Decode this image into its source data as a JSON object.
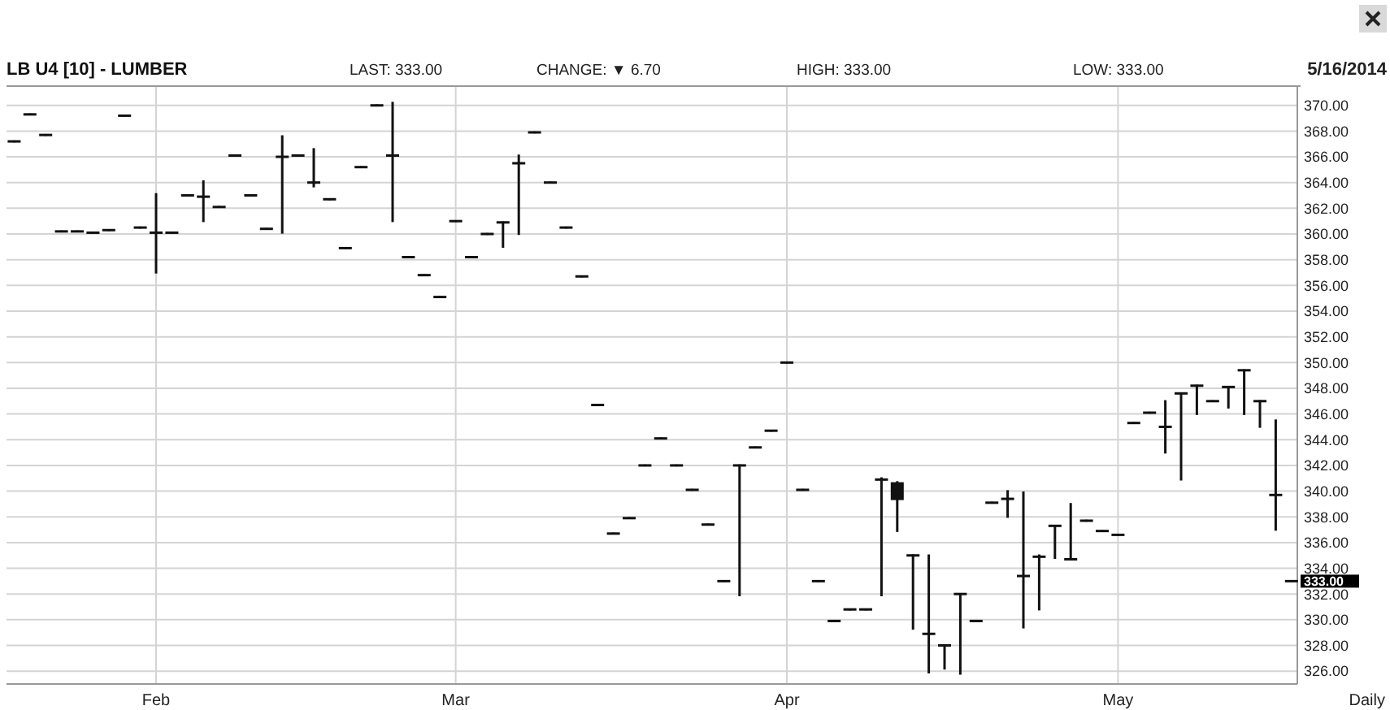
{
  "chart_data": {
    "type": "candlestick",
    "title": "LB U4 [10] - LUMBER",
    "color": "#111111",
    "annotations": [
      "LAST: 333.00",
      "CHANGE: ▼ 6.70",
      "HIGH: 333.00",
      "LOW: 333.00",
      "5/16/2014",
      "Daily",
      "333.00"
    ],
    "categories": [
      null,
      null,
      null,
      null,
      null,
      null,
      null,
      null,
      null,
      "Feb",
      null,
      null,
      null,
      null,
      null,
      null,
      null,
      null,
      null,
      null,
      null,
      null,
      null,
      null,
      null,
      null,
      null,
      null,
      "Mar",
      null,
      null,
      null,
      null,
      null,
      null,
      null,
      null,
      null,
      null,
      null,
      null,
      null,
      null,
      null,
      null,
      null,
      null,
      null,
      null,
      "Apr",
      null,
      null,
      null,
      null,
      null,
      null,
      null,
      null,
      null,
      null,
      null,
      null,
      null,
      null,
      null,
      null,
      null,
      null,
      null,
      null,
      "May",
      null,
      null,
      null,
      null,
      null,
      null,
      null,
      null,
      null,
      null,
      null
    ],
    "ohlc": [
      [
        367.2,
        367.2,
        367.2,
        367.2
      ],
      [
        369.3,
        369.3,
        369.3,
        369.3
      ],
      [
        367.7,
        367.7,
        367.7,
        367.7
      ],
      [
        360.2,
        360.2,
        360.2,
        360.2
      ],
      [
        360.2,
        360.2,
        360.2,
        360.2
      ],
      [
        360.1,
        360.1,
        360.1,
        360.1
      ],
      [
        360.3,
        360.3,
        360.3,
        360.3
      ],
      [
        369.2,
        369.2,
        369.2,
        369.2
      ],
      [
        360.5,
        360.5,
        360.5,
        360.5
      ],
      [
        360.1,
        363.1,
        357.0,
        360.1
      ],
      [
        360.1,
        360.1,
        360.1,
        360.1
      ],
      [
        363.0,
        363.0,
        363.0,
        363.0
      ],
      [
        362.9,
        364.1,
        361.0,
        362.9
      ],
      [
        362.1,
        362.1,
        362.1,
        362.1
      ],
      [
        366.1,
        366.1,
        366.1,
        366.1
      ],
      [
        363.0,
        363.0,
        363.0,
        363.0
      ],
      [
        360.4,
        360.4,
        360.4,
        360.4
      ],
      [
        366.0,
        367.6,
        360.1,
        366.0
      ],
      [
        366.1,
        366.1,
        366.1,
        366.1
      ],
      [
        364.0,
        366.6,
        363.7,
        364.0
      ],
      [
        362.7,
        362.7,
        362.7,
        362.7
      ],
      [
        358.9,
        358.9,
        358.9,
        358.9
      ],
      [
        365.2,
        365.2,
        365.2,
        365.2
      ],
      [
        370.0,
        370.0,
        370.0,
        370.0
      ],
      [
        366.1,
        370.2,
        361.0,
        366.1
      ],
      [
        358.2,
        358.2,
        358.2,
        358.2
      ],
      [
        356.8,
        356.8,
        356.8,
        356.8
      ],
      [
        355.1,
        355.1,
        355.1,
        355.1
      ],
      [
        361.0,
        361.0,
        361.0,
        361.0
      ],
      [
        358.2,
        358.2,
        358.2,
        358.2
      ],
      [
        360.0,
        360.0,
        360.0,
        360.0
      ],
      [
        360.9,
        360.9,
        359.0,
        360.9
      ],
      [
        365.5,
        366.1,
        360.0,
        365.5
      ],
      [
        367.9,
        367.9,
        367.9,
        367.9
      ],
      [
        364.0,
        364.0,
        364.0,
        364.0
      ],
      [
        360.5,
        360.5,
        360.5,
        360.5
      ],
      [
        356.7,
        356.7,
        356.7,
        356.7
      ],
      [
        346.7,
        346.7,
        346.7,
        346.7
      ],
      [
        336.7,
        336.7,
        336.7,
        336.7
      ],
      [
        337.9,
        337.9,
        337.9,
        337.9
      ],
      [
        342.0,
        342.0,
        342.0,
        342.0
      ],
      [
        344.1,
        344.1,
        344.1,
        344.1
      ],
      [
        342.0,
        342.0,
        342.0,
        342.0
      ],
      [
        340.1,
        340.1,
        340.1,
        340.1
      ],
      [
        337.4,
        337.4,
        337.4,
        337.4
      ],
      [
        333.0,
        333.0,
        333.0,
        333.0
      ],
      [
        342.0,
        342.0,
        331.9,
        342.0
      ],
      [
        343.4,
        343.4,
        343.4,
        343.4
      ],
      [
        344.7,
        344.7,
        344.7,
        344.7
      ],
      [
        350.0,
        350.0,
        350.0,
        350.0
      ],
      [
        340.1,
        340.1,
        340.1,
        340.1
      ],
      [
        333.0,
        333.0,
        333.0,
        333.0
      ],
      [
        329.9,
        329.9,
        329.9,
        329.9
      ],
      [
        330.8,
        330.8,
        330.8,
        330.8
      ],
      [
        330.8,
        330.8,
        330.8,
        330.8
      ],
      [
        340.9,
        341.0,
        331.9,
        340.9
      ],
      [
        340.6,
        340.7,
        336.9,
        339.4
      ],
      [
        335.0,
        335.0,
        329.3,
        335.0
      ],
      [
        328.9,
        335.0,
        325.9,
        328.9
      ],
      [
        328.0,
        328.0,
        326.2,
        328.0
      ],
      [
        332.0,
        332.0,
        325.8,
        332.0
      ],
      [
        329.9,
        329.9,
        329.9,
        329.9
      ],
      [
        339.1,
        339.1,
        339.1,
        339.1
      ],
      [
        339.4,
        340.0,
        338.0,
        339.4
      ],
      [
        333.4,
        339.9,
        329.4,
        333.4
      ],
      [
        334.9,
        335.0,
        330.8,
        334.9
      ],
      [
        337.3,
        337.3,
        334.8,
        337.3
      ],
      [
        334.7,
        339.0,
        334.7,
        334.7
      ],
      [
        337.7,
        337.7,
        337.7,
        337.7
      ],
      [
        336.9,
        336.9,
        336.9,
        336.9
      ],
      [
        336.6,
        336.6,
        336.6,
        336.6
      ],
      [
        345.3,
        345.3,
        345.3,
        345.3
      ],
      [
        346.1,
        346.1,
        346.1,
        346.1
      ],
      [
        345.0,
        347.0,
        343.0,
        345.0
      ],
      [
        347.6,
        347.6,
        340.9,
        347.6
      ],
      [
        348.2,
        348.2,
        346.0,
        348.2
      ],
      [
        347.0,
        347.0,
        347.0,
        347.0
      ],
      [
        348.1,
        348.1,
        346.5,
        348.1
      ],
      [
        349.4,
        349.4,
        346.0,
        349.4
      ],
      [
        347.0,
        347.0,
        345.0,
        347.0
      ],
      [
        339.7,
        345.5,
        337.0,
        339.7
      ],
      [
        333.0,
        333.0,
        333.0,
        333.0
      ]
    ],
    "ylim": [
      325,
      371.5
    ],
    "yticks": [
      {
        "value": 326,
        "label": "326.00"
      },
      {
        "value": 328,
        "label": "328.00"
      },
      {
        "value": 330,
        "label": "330.00"
      },
      {
        "value": 332,
        "label": "332.00"
      },
      {
        "value": 334,
        "label": "334.00"
      },
      {
        "value": 336,
        "label": "336.00"
      },
      {
        "value": 338,
        "label": "338.00"
      },
      {
        "value": 340,
        "label": "340.00"
      },
      {
        "value": 342,
        "label": "342.00"
      },
      {
        "value": 344,
        "label": "344.00"
      },
      {
        "value": 346,
        "label": "346.00"
      },
      {
        "value": 348,
        "label": "348.00"
      },
      {
        "value": 350,
        "label": "350.00"
      },
      {
        "value": 352,
        "label": "352.00"
      },
      {
        "value": 354,
        "label": "354.00"
      },
      {
        "value": 356,
        "label": "356.00"
      },
      {
        "value": 358,
        "label": "358.00"
      },
      {
        "value": 360,
        "label": "360.00"
      },
      {
        "value": 362,
        "label": "362.00"
      },
      {
        "value": 364,
        "label": "364.00"
      },
      {
        "value": 366,
        "label": "366.00"
      },
      {
        "value": 368,
        "label": "368.00"
      },
      {
        "value": 370,
        "label": "370.00"
      }
    ],
    "grid": true
  }
}
